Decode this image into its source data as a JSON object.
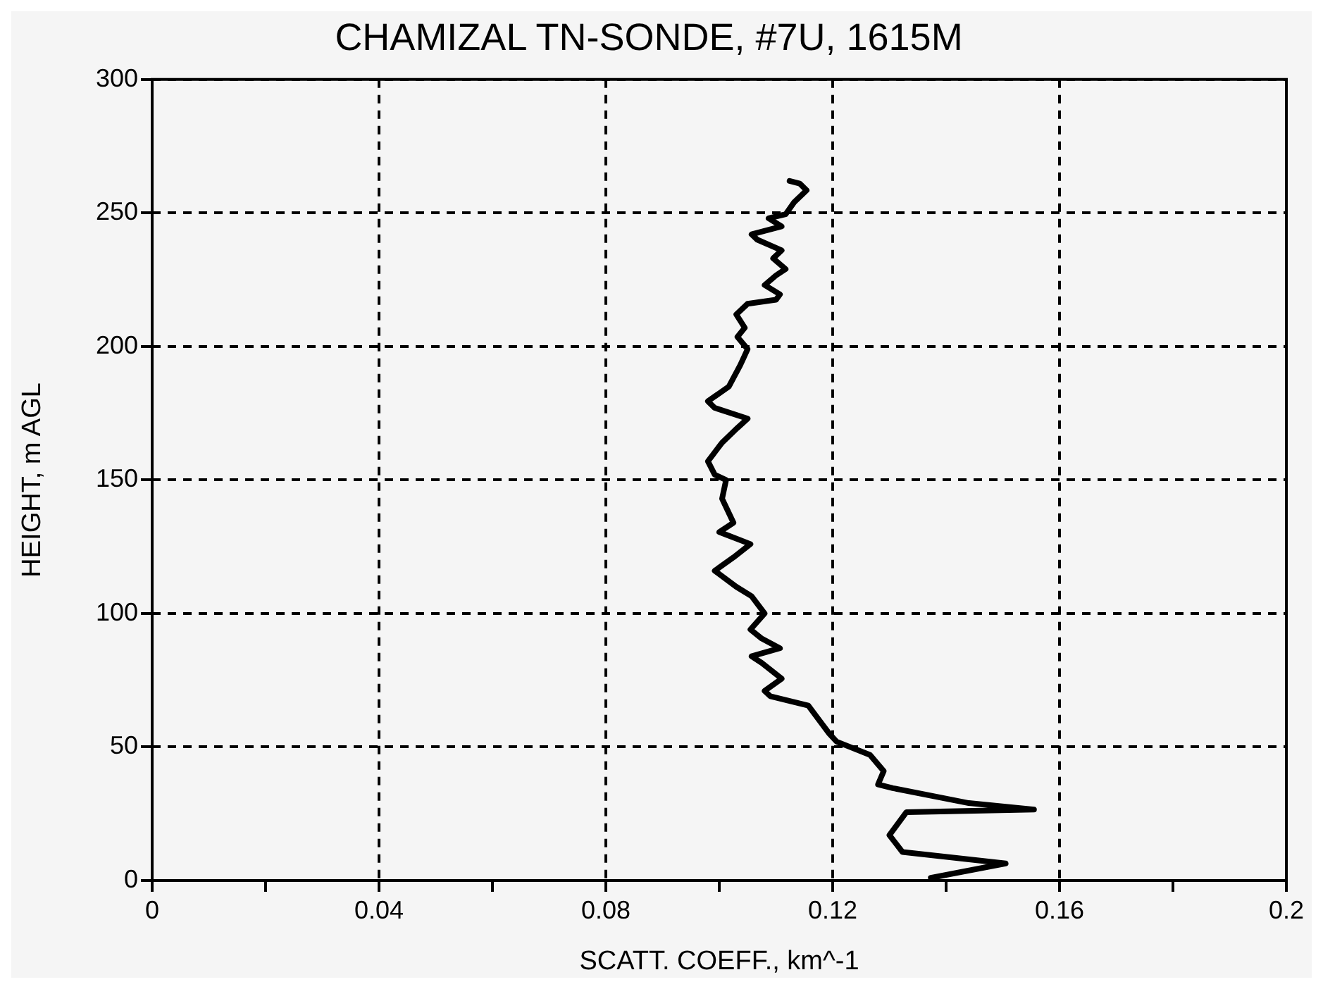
{
  "chart_data": {
    "type": "line",
    "title": "CHAMIZAL TN-SONDE, #7U, 1615M",
    "xlabel": "SCATT. COEFF., km^-1",
    "ylabel": "HEIGHT, m AGL",
    "x": [
      0.1373,
      0.1505,
      0.1323,
      0.13,
      0.133,
      0.1555,
      0.144,
      0.1306,
      0.128,
      0.129,
      0.1266,
      0.1207,
      0.1194,
      0.1157,
      0.109,
      0.108,
      0.111,
      0.1075,
      0.1057,
      0.1107,
      0.1075,
      0.1055,
      0.108,
      0.1057,
      0.103,
      0.0992,
      0.1025,
      0.1055,
      0.1,
      0.1025,
      0.1005,
      0.1012,
      0.0992,
      0.098,
      0.1005,
      0.1032,
      0.105,
      0.0992,
      0.098,
      0.1017,
      0.1037,
      0.105,
      0.1032,
      0.1045,
      0.103,
      0.105,
      0.11,
      0.1107,
      0.108,
      0.11,
      0.1117,
      0.1095,
      0.111,
      0.1067,
      0.1057,
      0.111,
      0.1087,
      0.1117,
      0.1132,
      0.1154,
      0.1142,
      0.1124
    ],
    "values": [
      1,
      6.4,
      10.7,
      17,
      25.6,
      26.6,
      29,
      34.6,
      36,
      41,
      47,
      52,
      55,
      65.5,
      69,
      71,
      75.6,
      81.5,
      84,
      87,
      90.6,
      94,
      100,
      106.5,
      110,
      116,
      121,
      126,
      130.5,
      134,
      143,
      150,
      152,
      157,
      164,
      169.5,
      173,
      177,
      179.5,
      185,
      193,
      199,
      203.6,
      207,
      212,
      216,
      217.5,
      219.5,
      223,
      226.6,
      229,
      233,
      236,
      240,
      242,
      245,
      248,
      249.5,
      254,
      258.5,
      261,
      262
    ],
    "color": "#000000",
    "line_style": "solid",
    "marker": "none",
    "grid": true,
    "legend": false,
    "xlim": [
      0,
      0.2
    ],
    "xticks": [
      0,
      {
        "value": 0.02,
        "label": null
      },
      0.04,
      {
        "value": 0.06,
        "label": null
      },
      0.08,
      {
        "value": 0.1,
        "label": null
      },
      0.12,
      {
        "value": 0.14,
        "label": null
      },
      0.16,
      {
        "value": 0.18,
        "label": null
      },
      0.2
    ],
    "ylim": [
      0,
      300
    ],
    "yticks": [
      0,
      50,
      100,
      150,
      200,
      250,
      300
    ]
  }
}
